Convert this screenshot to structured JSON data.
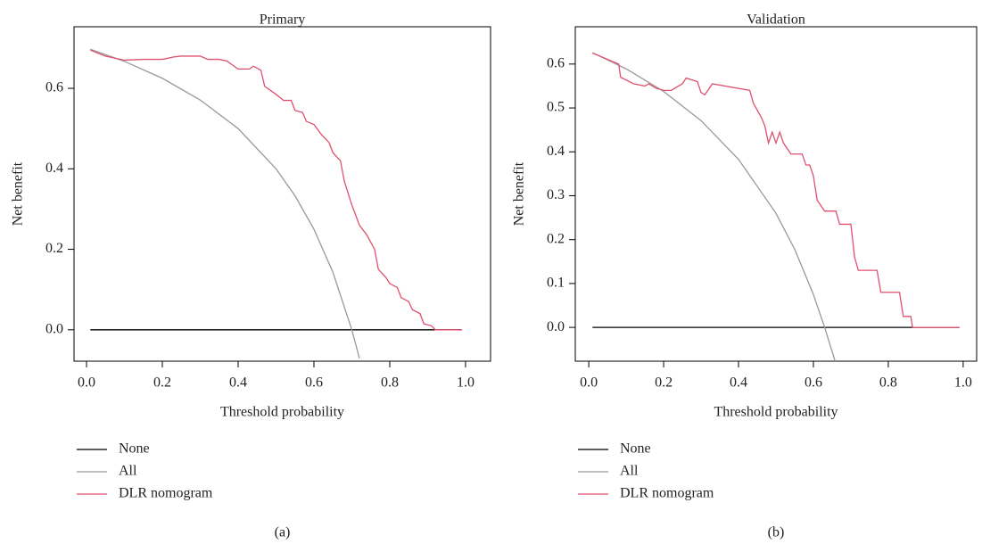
{
  "chart_data": [
    {
      "type": "line",
      "title": "Primary",
      "x_label": "Threshold probability",
      "y_label": "Net benefit",
      "caption": "(a)",
      "xlim": [
        -0.033,
        1.066
      ],
      "ylim": [
        -0.078,
        0.753
      ],
      "xticks": [
        {
          "value": 0,
          "label": "0.0"
        },
        0.2,
        0.4,
        0.6,
        0.8,
        {
          "value": 1,
          "label": "1.0"
        }
      ],
      "yticks": [
        {
          "value": 0,
          "label": "0.0"
        },
        0.2,
        0.4,
        0.6
      ],
      "legend": "bottom-left",
      "series": [
        {
          "name": "None",
          "color": "#000000",
          "x": [
            0.01,
            0.99
          ],
          "values": [
            0,
            0
          ]
        },
        {
          "name": "All",
          "color": "#999999",
          "x": [
            0.01,
            0.1,
            0.2,
            0.3,
            0.4,
            0.5,
            0.55,
            0.6,
            0.65,
            0.7,
            0.72
          ],
          "values": [
            0.697,
            0.667,
            0.625,
            0.571,
            0.5,
            0.4,
            0.333,
            0.25,
            0.143,
            0,
            -0.071
          ]
        },
        {
          "name": "DLR nomogram",
          "color": "#e0506e",
          "x": [
            0.01,
            0.05,
            0.1,
            0.15,
            0.2,
            0.23,
            0.25,
            0.3,
            0.32,
            0.35,
            0.37,
            0.4,
            0.43,
            0.44,
            0.46,
            0.47,
            0.5,
            0.52,
            0.54,
            0.55,
            0.57,
            0.58,
            0.6,
            0.62,
            0.64,
            0.65,
            0.67,
            0.68,
            0.7,
            0.72,
            0.74,
            0.76,
            0.77,
            0.79,
            0.8,
            0.82,
            0.83,
            0.85,
            0.86,
            0.88,
            0.89,
            0.91,
            0.92,
            0.99
          ],
          "values": [
            0.695,
            0.68,
            0.67,
            0.672,
            0.672,
            0.678,
            0.68,
            0.68,
            0.672,
            0.672,
            0.668,
            0.648,
            0.648,
            0.655,
            0.645,
            0.605,
            0.585,
            0.57,
            0.57,
            0.545,
            0.54,
            0.518,
            0.51,
            0.485,
            0.465,
            0.44,
            0.42,
            0.37,
            0.31,
            0.26,
            0.235,
            0.2,
            0.15,
            0.13,
            0.115,
            0.105,
            0.08,
            0.07,
            0.05,
            0.04,
            0.015,
            0.01,
            0,
            0
          ]
        }
      ]
    },
    {
      "type": "line",
      "title": "Validation",
      "x_label": "Threshold probability",
      "y_label": "Net benefit",
      "caption": "(b)",
      "xlim": [
        -0.036,
        1.036
      ],
      "ylim": [
        -0.077,
        0.685
      ],
      "xticks": [
        {
          "value": 0,
          "label": "0.0"
        },
        0.2,
        0.4,
        0.6,
        0.8,
        {
          "value": 1,
          "label": "1.0"
        }
      ],
      "yticks": [
        {
          "value": 0,
          "label": "0.0"
        },
        0.1,
        0.2,
        0.3,
        0.4,
        0.5,
        0.6
      ],
      "legend": "bottom-left",
      "series": [
        {
          "name": "None",
          "color": "#000000",
          "x": [
            0.01,
            0.99
          ],
          "values": [
            0,
            0
          ]
        },
        {
          "name": "All",
          "color": "#999999",
          "x": [
            0.01,
            0.1,
            0.2,
            0.3,
            0.4,
            0.5,
            0.55,
            0.6,
            0.63,
            0.66
          ],
          "values": [
            0.626,
            0.589,
            0.5375,
            0.471,
            0.383,
            0.26,
            0.178,
            0.075,
            0,
            -0.0826
          ]
        },
        {
          "name": "DLR nomogram",
          "color": "#e0506e",
          "x": [
            0.01,
            0.08,
            0.085,
            0.12,
            0.15,
            0.16,
            0.18,
            0.2,
            0.22,
            0.25,
            0.26,
            0.29,
            0.3,
            0.31,
            0.33,
            0.43,
            0.44,
            0.46,
            0.47,
            0.48,
            0.49,
            0.5,
            0.51,
            0.52,
            0.54,
            0.57,
            0.58,
            0.59,
            0.6,
            0.61,
            0.63,
            0.66,
            0.67,
            0.7,
            0.71,
            0.72,
            0.77,
            0.78,
            0.81,
            0.83,
            0.84,
            0.86,
            0.865,
            0.99
          ],
          "values": [
            0.625,
            0.6,
            0.57,
            0.555,
            0.55,
            0.555,
            0.545,
            0.54,
            0.54,
            0.555,
            0.568,
            0.56,
            0.535,
            0.53,
            0.555,
            0.54,
            0.51,
            0.48,
            0.46,
            0.42,
            0.445,
            0.42,
            0.445,
            0.42,
            0.395,
            0.395,
            0.37,
            0.37,
            0.345,
            0.29,
            0.265,
            0.265,
            0.235,
            0.235,
            0.16,
            0.13,
            0.13,
            0.08,
            0.08,
            0.08,
            0.025,
            0.025,
            0,
            0
          ]
        }
      ]
    }
  ]
}
